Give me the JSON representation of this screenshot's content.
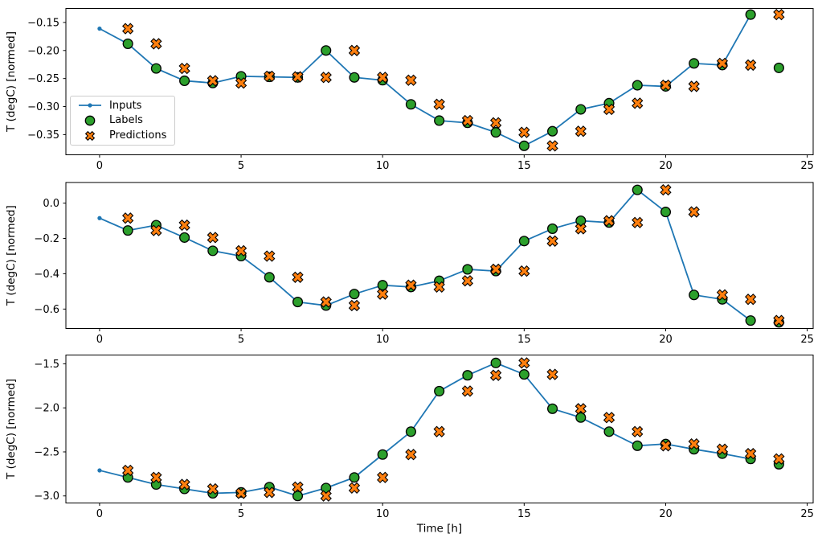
{
  "legend": {
    "items": [
      {
        "label": "Inputs",
        "marker": "line-dot",
        "color": "#1f77b4"
      },
      {
        "label": "Labels",
        "marker": "circle",
        "color": "#2ca02c"
      },
      {
        "label": "Predictions",
        "marker": "X",
        "color": "#ff7f0e"
      }
    ]
  },
  "chart_data": [
    {
      "type": "line",
      "xlabel": "",
      "ylabel": "T (degC) [normed]",
      "x_ticks": [
        0,
        5,
        10,
        15,
        20,
        25
      ],
      "y_ticks": [
        -0.15,
        -0.2,
        -0.25,
        -0.3,
        -0.35
      ],
      "y_tick_decimals": 2,
      "xlim": [
        -1.19,
        25.21
      ],
      "ylim": [
        -0.386,
        -0.125
      ],
      "grid": false,
      "has_legend": true,
      "legend_position": "center-left",
      "series": [
        {
          "name": "Inputs",
          "type": "line",
          "marker": "dot",
          "color": "#1f77b4",
          "x": [
            0,
            1,
            2,
            3,
            4,
            5,
            6,
            7,
            8,
            9,
            10,
            11,
            12,
            13,
            14,
            15,
            16,
            17,
            18,
            19,
            20,
            21,
            22,
            23
          ],
          "y": [
            -0.161,
            -0.188,
            -0.232,
            -0.254,
            -0.258,
            -0.246,
            -0.247,
            -0.248,
            -0.2,
            -0.248,
            -0.253,
            -0.296,
            -0.325,
            -0.329,
            -0.346,
            -0.37,
            -0.344,
            -0.305,
            -0.294,
            -0.262,
            -0.264,
            -0.223,
            -0.226,
            -0.136
          ]
        },
        {
          "name": "Labels",
          "type": "scatter",
          "marker": "circle",
          "color": "#2ca02c",
          "edge_color": "#000000",
          "x": [
            1,
            2,
            3,
            4,
            5,
            6,
            7,
            8,
            9,
            10,
            11,
            12,
            13,
            14,
            15,
            16,
            17,
            18,
            19,
            20,
            21,
            22,
            23,
            24
          ],
          "y": [
            -0.188,
            -0.232,
            -0.254,
            -0.258,
            -0.246,
            -0.247,
            -0.248,
            -0.2,
            -0.248,
            -0.253,
            -0.296,
            -0.325,
            -0.329,
            -0.346,
            -0.37,
            -0.344,
            -0.305,
            -0.294,
            -0.262,
            -0.264,
            -0.223,
            -0.226,
            -0.136,
            -0.231
          ]
        },
        {
          "name": "Predictions",
          "type": "scatter",
          "marker": "X",
          "color": "#ff7f0e",
          "edge_color": "#000000",
          "x": [
            1,
            2,
            3,
            4,
            5,
            6,
            7,
            8,
            9,
            10,
            11,
            12,
            13,
            14,
            15,
            16,
            17,
            18,
            19,
            20,
            21,
            22,
            23,
            24
          ],
          "y": [
            -0.161,
            -0.188,
            -0.232,
            -0.254,
            -0.258,
            -0.246,
            -0.247,
            -0.248,
            -0.2,
            -0.248,
            -0.253,
            -0.296,
            -0.325,
            -0.329,
            -0.346,
            -0.37,
            -0.344,
            -0.305,
            -0.294,
            -0.262,
            -0.264,
            -0.223,
            -0.226,
            -0.136
          ]
        }
      ]
    },
    {
      "type": "line",
      "xlabel": "",
      "ylabel": "T (degC) [normed]",
      "x_ticks": [
        0,
        5,
        10,
        15,
        20,
        25
      ],
      "y_ticks": [
        0.0,
        -0.2,
        -0.4,
        -0.6
      ],
      "y_tick_decimals": 1,
      "xlim": [
        -1.19,
        25.21
      ],
      "ylim": [
        -0.71,
        0.117
      ],
      "grid": false,
      "has_legend": false,
      "series": [
        {
          "name": "Inputs",
          "type": "line",
          "marker": "dot",
          "color": "#1f77b4",
          "x": [
            0,
            1,
            2,
            3,
            4,
            5,
            6,
            7,
            8,
            9,
            10,
            11,
            12,
            13,
            14,
            15,
            16,
            17,
            18,
            19,
            20,
            21,
            22,
            23
          ],
          "y": [
            -0.085,
            -0.155,
            -0.125,
            -0.195,
            -0.27,
            -0.3,
            -0.42,
            -0.56,
            -0.58,
            -0.515,
            -0.465,
            -0.475,
            -0.44,
            -0.375,
            -0.385,
            -0.215,
            -0.145,
            -0.1,
            -0.11,
            0.075,
            -0.05,
            -0.52,
            -0.545,
            -0.665
          ]
        },
        {
          "name": "Labels",
          "type": "scatter",
          "marker": "circle",
          "color": "#2ca02c",
          "edge_color": "#000000",
          "x": [
            1,
            2,
            3,
            4,
            5,
            6,
            7,
            8,
            9,
            10,
            11,
            12,
            13,
            14,
            15,
            16,
            17,
            18,
            19,
            20,
            21,
            22,
            23,
            24
          ],
          "y": [
            -0.155,
            -0.125,
            -0.195,
            -0.27,
            -0.3,
            -0.42,
            -0.56,
            -0.58,
            -0.515,
            -0.465,
            -0.475,
            -0.44,
            -0.375,
            -0.385,
            -0.215,
            -0.145,
            -0.1,
            -0.11,
            0.075,
            -0.05,
            -0.52,
            -0.545,
            -0.665,
            -0.675
          ]
        },
        {
          "name": "Predictions",
          "type": "scatter",
          "marker": "X",
          "color": "#ff7f0e",
          "edge_color": "#000000",
          "x": [
            1,
            2,
            3,
            4,
            5,
            6,
            7,
            8,
            9,
            10,
            11,
            12,
            13,
            14,
            15,
            16,
            17,
            18,
            19,
            20,
            21,
            22,
            23,
            24
          ],
          "y": [
            -0.085,
            -0.155,
            -0.125,
            -0.195,
            -0.27,
            -0.3,
            -0.42,
            -0.56,
            -0.58,
            -0.515,
            -0.465,
            -0.475,
            -0.44,
            -0.375,
            -0.385,
            -0.215,
            -0.145,
            -0.1,
            -0.11,
            0.075,
            -0.05,
            -0.52,
            -0.545,
            -0.665
          ]
        }
      ]
    },
    {
      "type": "line",
      "xlabel": "Time [h]",
      "ylabel": "T (degC) [normed]",
      "x_ticks": [
        0,
        5,
        10,
        15,
        20,
        25
      ],
      "y_ticks": [
        -1.5,
        -2.0,
        -2.5,
        -3.0
      ],
      "y_tick_decimals": 1,
      "xlim": [
        -1.19,
        25.21
      ],
      "ylim": [
        -3.08,
        -1.4
      ],
      "grid": false,
      "has_legend": false,
      "series": [
        {
          "name": "Inputs",
          "type": "line",
          "marker": "dot",
          "color": "#1f77b4",
          "x": [
            0,
            1,
            2,
            3,
            4,
            5,
            6,
            7,
            8,
            9,
            10,
            11,
            12,
            13,
            14,
            15,
            16,
            17,
            18,
            19,
            20,
            21,
            22,
            23
          ],
          "y": [
            -2.71,
            -2.79,
            -2.87,
            -2.92,
            -2.97,
            -2.96,
            -2.9,
            -3.0,
            -2.91,
            -2.79,
            -2.53,
            -2.27,
            -1.81,
            -1.63,
            -1.49,
            -1.62,
            -2.01,
            -2.11,
            -2.27,
            -2.43,
            -2.41,
            -2.47,
            -2.52,
            -2.58
          ]
        },
        {
          "name": "Labels",
          "type": "scatter",
          "marker": "circle",
          "color": "#2ca02c",
          "edge_color": "#000000",
          "x": [
            1,
            2,
            3,
            4,
            5,
            6,
            7,
            8,
            9,
            10,
            11,
            12,
            13,
            14,
            15,
            16,
            17,
            18,
            19,
            20,
            21,
            22,
            23,
            24
          ],
          "y": [
            -2.79,
            -2.87,
            -2.92,
            -2.97,
            -2.96,
            -2.9,
            -3.0,
            -2.91,
            -2.79,
            -2.53,
            -2.27,
            -1.81,
            -1.63,
            -1.49,
            -1.62,
            -2.01,
            -2.11,
            -2.27,
            -2.43,
            -2.41,
            -2.47,
            -2.52,
            -2.58,
            -2.64
          ]
        },
        {
          "name": "Predictions",
          "type": "scatter",
          "marker": "X",
          "color": "#ff7f0e",
          "edge_color": "#000000",
          "x": [
            1,
            2,
            3,
            4,
            5,
            6,
            7,
            8,
            9,
            10,
            11,
            12,
            13,
            14,
            15,
            16,
            17,
            18,
            19,
            20,
            21,
            22,
            23,
            24
          ],
          "y": [
            -2.71,
            -2.79,
            -2.87,
            -2.92,
            -2.97,
            -2.96,
            -2.9,
            -3.0,
            -2.91,
            -2.79,
            -2.53,
            -2.27,
            -1.81,
            -1.63,
            -1.49,
            -1.62,
            -2.01,
            -2.11,
            -2.27,
            -2.43,
            -2.41,
            -2.47,
            -2.52,
            -2.58
          ]
        }
      ]
    }
  ]
}
